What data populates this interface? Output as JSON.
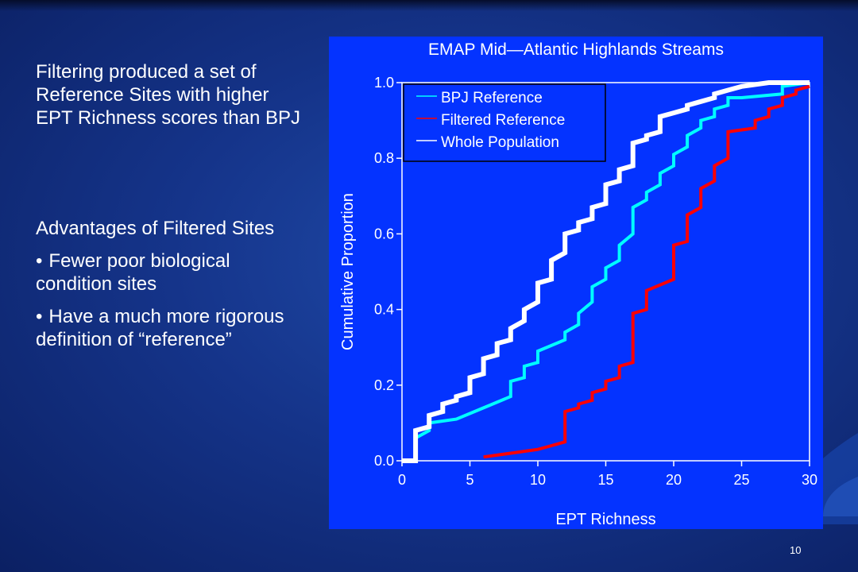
{
  "slide": {
    "paragraph": "Filtering produced a set of Reference Sites with higher EPT Richness scores than BPJ",
    "advantages_heading": "Advantages of Filtered Sites",
    "bullets": [
      "Fewer poor biological condition sites",
      "Have a much more rigorous definition of “reference”"
    ],
    "bullet_marker": "•",
    "page_number": "10"
  },
  "colors": {
    "chart_background": "#0433ff",
    "bpj_reference": "#00ffff",
    "filtered_reference": "#ff0000",
    "whole_population": "#ffffff"
  },
  "chart_data": {
    "type": "line",
    "step": true,
    "title": "EMAP Mid—Atlantic Highlands Streams",
    "xlabel": "EPT Richness",
    "ylabel": "Cumulative Proportion",
    "xlim": [
      0,
      30
    ],
    "ylim": [
      0,
      1
    ],
    "xticks": [
      0,
      5,
      10,
      15,
      20,
      25,
      30
    ],
    "xtick_labels": [
      "0",
      "5",
      "10",
      "15",
      "20",
      "25",
      "30"
    ],
    "yticks": [
      0,
      0.2,
      0.4,
      0.6,
      0.8,
      1.0
    ],
    "ytick_labels": [
      "0.0",
      "0.2",
      "0.4",
      "0.6",
      "0.8",
      "1.0"
    ],
    "legend_position": "top-left",
    "series": [
      {
        "name": "BPJ Reference",
        "color": "#00ffff",
        "x": [
          0,
          1,
          1,
          2,
          2,
          4,
          6,
          8,
          8,
          9,
          9,
          10,
          10,
          12,
          12,
          13,
          13,
          14,
          14,
          15,
          15,
          16,
          16,
          17,
          17,
          18,
          18,
          19,
          19,
          20,
          20,
          21,
          21,
          22,
          22,
          23,
          23,
          24,
          24,
          25,
          28,
          28,
          30
        ],
        "y": [
          0,
          0,
          0.06,
          0.08,
          0.1,
          0.11,
          0.14,
          0.17,
          0.21,
          0.22,
          0.25,
          0.26,
          0.29,
          0.32,
          0.34,
          0.36,
          0.39,
          0.42,
          0.46,
          0.48,
          0.51,
          0.53,
          0.57,
          0.6,
          0.67,
          0.69,
          0.71,
          0.73,
          0.76,
          0.78,
          0.81,
          0.83,
          0.86,
          0.88,
          0.9,
          0.91,
          0.93,
          0.94,
          0.96,
          0.96,
          0.97,
          0.99,
          1.0
        ]
      },
      {
        "name": "Filtered Reference",
        "color": "#ff0000",
        "x": [
          6,
          8,
          10,
          11,
          12,
          12,
          13,
          13,
          14,
          14,
          15,
          15,
          16,
          16,
          17,
          17,
          18,
          18,
          20,
          20,
          21,
          21,
          22,
          22,
          23,
          23,
          24,
          24,
          26,
          26,
          27,
          27,
          28,
          28,
          29,
          29,
          30
        ],
        "y": [
          0.01,
          0.02,
          0.03,
          0.04,
          0.05,
          0.13,
          0.14,
          0.15,
          0.16,
          0.18,
          0.19,
          0.21,
          0.22,
          0.25,
          0.26,
          0.39,
          0.4,
          0.45,
          0.48,
          0.57,
          0.58,
          0.65,
          0.67,
          0.72,
          0.74,
          0.78,
          0.8,
          0.87,
          0.88,
          0.9,
          0.91,
          0.93,
          0.94,
          0.96,
          0.97,
          0.98,
          0.99
        ]
      },
      {
        "name": "Whole Population",
        "color": "#ffffff",
        "x": [
          0,
          1,
          1,
          2,
          2,
          3,
          3,
          4,
          4,
          5,
          5,
          6,
          6,
          7,
          7,
          8,
          8,
          9,
          9,
          10,
          10,
          11,
          11,
          12,
          12,
          13,
          13,
          14,
          14,
          15,
          15,
          16,
          16,
          17,
          17,
          18,
          18,
          19,
          19,
          20,
          20,
          21,
          21,
          22,
          22,
          23,
          23,
          24,
          24,
          25,
          25,
          27,
          27,
          30
        ],
        "y": [
          0,
          0,
          0.08,
          0.09,
          0.12,
          0.13,
          0.15,
          0.16,
          0.17,
          0.18,
          0.22,
          0.23,
          0.27,
          0.28,
          0.31,
          0.32,
          0.35,
          0.37,
          0.4,
          0.42,
          0.47,
          0.48,
          0.53,
          0.55,
          0.6,
          0.61,
          0.63,
          0.64,
          0.67,
          0.68,
          0.73,
          0.74,
          0.77,
          0.78,
          0.84,
          0.85,
          0.86,
          0.87,
          0.91,
          0.92,
          0.92,
          0.93,
          0.94,
          0.95,
          0.95,
          0.96,
          0.97,
          0.98,
          0.98,
          0.99,
          0.99,
          1.0,
          1.0,
          1.0
        ]
      }
    ]
  }
}
